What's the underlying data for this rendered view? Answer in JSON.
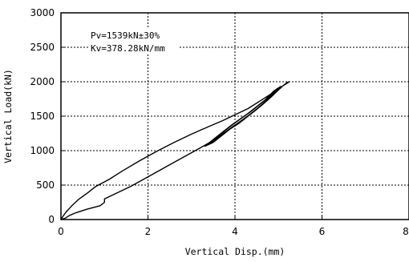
{
  "chart_data": {
    "type": "line",
    "xlabel": "Vertical Disp.(mm)",
    "ylabel": "Vertical Load(kN)",
    "xlim": [
      0,
      8
    ],
    "ylim": [
      0,
      3000
    ],
    "x_ticks": [
      "0",
      "2",
      "4",
      "6",
      "8"
    ],
    "y_ticks": [
      "0",
      "500",
      "1000",
      "1500",
      "2000",
      "2500",
      "3000"
    ],
    "grid": "dashed",
    "annotations": [
      "Pv=1539kN±30%",
      "Kv=378.28kN/mm"
    ],
    "series": [
      {
        "color": "#000000",
        "x": [
          0,
          0.1,
          0.2,
          0.35,
          0.6,
          0.9,
          1.0,
          1.0,
          1.3,
          1.6,
          2.0,
          2.4,
          2.8,
          3.2,
          3.4,
          3.6,
          3.8,
          4.0,
          4.2,
          4.4,
          4.6,
          4.8,
          5.0,
          5.1,
          5.2,
          5.25,
          5.1,
          4.9,
          4.6,
          4.3,
          4.0,
          3.7,
          3.4,
          3.0,
          2.6,
          2.2,
          1.8,
          1.4,
          1.1,
          0.8,
          0.6,
          0.4,
          0.25,
          0.12,
          0.05,
          0
        ],
        "y": [
          0,
          20,
          60,
          100,
          150,
          200,
          250,
          300,
          390,
          480,
          620,
          760,
          900,
          1040,
          1110,
          1190,
          1280,
          1370,
          1460,
          1550,
          1650,
          1760,
          1880,
          1940,
          1990,
          2000,
          1940,
          1850,
          1730,
          1610,
          1520,
          1430,
          1350,
          1240,
          1120,
          990,
          850,
          700,
          580,
          480,
          380,
          290,
          200,
          110,
          50,
          0
        ]
      },
      {
        "color": "#000000",
        "x": [
          3.3,
          3.5,
          3.7,
          3.9,
          4.1,
          4.3,
          4.5,
          4.7,
          4.9,
          5.0,
          4.9,
          4.7,
          4.5,
          4.3,
          4.1,
          3.9,
          3.7,
          3.5,
          3.3
        ],
        "y": [
          1060,
          1120,
          1220,
          1320,
          1400,
          1500,
          1600,
          1710,
          1840,
          1900,
          1870,
          1740,
          1640,
          1540,
          1450,
          1360,
          1260,
          1160,
          1060
        ]
      },
      {
        "color": "#000000",
        "x": [
          3.35,
          3.55,
          3.75,
          3.95,
          4.15,
          4.35,
          4.55,
          4.75,
          4.95,
          5.05,
          4.95,
          4.75,
          4.55,
          4.35,
          4.15,
          3.95,
          3.75,
          3.55,
          3.35
        ],
        "y": [
          1080,
          1150,
          1250,
          1350,
          1430,
          1530,
          1630,
          1740,
          1870,
          1930,
          1890,
          1760,
          1660,
          1560,
          1470,
          1380,
          1280,
          1180,
          1080
        ]
      }
    ]
  }
}
